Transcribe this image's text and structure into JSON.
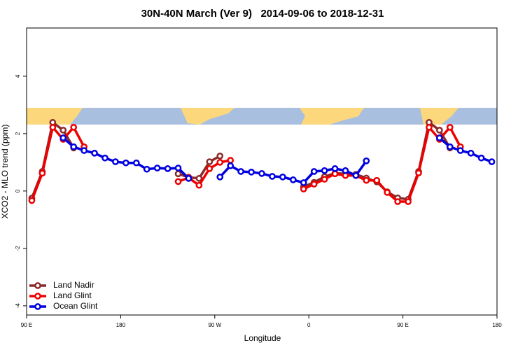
{
  "chart_data": {
    "type": "line",
    "title": "30N-40N March (Ver 9)   2014-09-06 to 2018-12-31",
    "x_label": "Longitude",
    "y_label": "XCO2 - MLO trend (ppm)",
    "x": [
      95,
      105,
      115,
      125,
      135,
      145,
      155,
      165,
      175,
      185,
      195,
      205,
      215,
      225,
      235,
      245,
      255,
      265,
      275,
      285,
      295,
      305,
      315,
      325,
      335,
      345,
      355,
      365,
      375,
      385,
      395,
      405,
      415,
      425,
      435,
      445,
      455,
      465,
      475,
      485,
      495,
      505,
      515,
      525,
      535
    ],
    "series": [
      {
        "name": "Land Nadir",
        "color": "#8b2a2a",
        "values": [
          -0.25,
          0.68,
          2.39,
          2.12,
          1.5,
          null,
          null,
          null,
          null,
          null,
          null,
          null,
          null,
          null,
          0.6,
          0.48,
          0.44,
          1.02,
          1.22,
          null,
          null,
          null,
          null,
          null,
          null,
          null,
          0.15,
          0.3,
          0.5,
          0.62,
          0.6,
          0.58,
          0.45,
          0.32,
          -0.03,
          -0.24,
          -0.29,
          0.68,
          2.39,
          2.12,
          1.5,
          null,
          null,
          null,
          null
        ]
      },
      {
        "name": "Land Glint",
        "color": "#ee0000",
        "values": [
          -0.33,
          0.62,
          2.22,
          1.8,
          2.22,
          1.54,
          null,
          null,
          null,
          null,
          null,
          null,
          null,
          null,
          0.33,
          0.46,
          0.2,
          0.78,
          1.0,
          1.07,
          null,
          null,
          null,
          null,
          null,
          null,
          0.07,
          0.24,
          0.41,
          0.6,
          0.54,
          0.54,
          0.37,
          0.37,
          -0.05,
          -0.37,
          -0.37,
          0.63,
          2.22,
          1.8,
          2.22,
          1.54,
          null,
          null,
          null
        ]
      },
      {
        "name": "Ocean Glint",
        "color": "#0000e0",
        "values": [
          null,
          null,
          null,
          1.85,
          1.54,
          1.41,
          1.32,
          1.15,
          1.02,
          0.98,
          0.98,
          0.76,
          0.8,
          0.78,
          0.8,
          0.44,
          null,
          null,
          0.49,
          0.88,
          0.68,
          0.66,
          0.61,
          0.51,
          0.49,
          0.39,
          0.29,
          0.68,
          0.71,
          0.78,
          0.71,
          0.54,
          1.05,
          null,
          null,
          null,
          null,
          null,
          null,
          1.85,
          1.54,
          1.41,
          1.32,
          1.15,
          1.02
        ]
      }
    ],
    "xlim": [
      90,
      540
    ],
    "xticks": [
      {
        "value": 90,
        "label": "90 E"
      },
      180,
      {
        "value": 270,
        "label": "90 W"
      },
      {
        "value": 360,
        "label": "0"
      },
      {
        "value": 450,
        "label": "90 E"
      },
      {
        "value": 540,
        "label": "180"
      }
    ],
    "ylim": [
      -4.32,
      5.68
    ],
    "yticks": [
      -4,
      -2,
      0,
      2,
      4
    ],
    "legend": "bottom-left"
  }
}
